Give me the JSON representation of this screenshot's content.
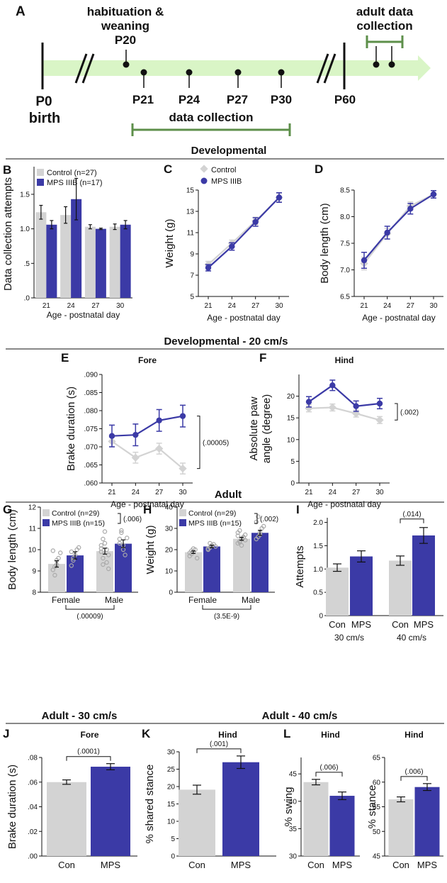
{
  "colors": {
    "control": "#d3d3d3",
    "mps": "#3b3aa6",
    "timeline": "#d9f5c6",
    "green": "#5d8f4a",
    "scatter": "#aaaaaa"
  },
  "timeline": {
    "letter": "A",
    "hab_line1": "habituation &",
    "hab_line2": "weaning",
    "hab_day": "P20",
    "adult_line1": "adult data",
    "adult_line2": "collection",
    "p0": "P0",
    "birth": "birth",
    "days": [
      "P21",
      "P24",
      "P27",
      "P30"
    ],
    "p60": "P60",
    "data_collection": "data collection"
  },
  "sections": {
    "developmental": "Developmental",
    "dev20": "Developmental - 20 cm/s",
    "adult": "Adult",
    "adult30": "Adult - 30 cm/s",
    "adult40": "Adult - 40 cm/s"
  },
  "chart_data": [
    {
      "id": "B",
      "type": "bar",
      "letter": "B",
      "categories": [
        "21",
        "24",
        "27",
        "30"
      ],
      "series": [
        {
          "name": "Control (n=27)",
          "values": [
            1.24,
            1.2,
            1.03,
            1.03
          ],
          "err": [
            0.1,
            0.12,
            0.03,
            0.04
          ]
        },
        {
          "name": "MPS IIIB (n=17)",
          "values": [
            1.06,
            1.43,
            1.0,
            1.06
          ],
          "err": [
            0.06,
            0.3,
            0.01,
            0.06
          ]
        }
      ],
      "yticks": [
        {
          "v": 0,
          "label": ".0"
        },
        {
          "v": 0.5,
          "label": ".5"
        },
        {
          "v": 1.0,
          "label": "1.0"
        },
        {
          "v": 1.5,
          "label": "1.5"
        }
      ],
      "ylim": [
        0,
        1.9
      ],
      "ylabel": "Data collection attempts",
      "xlabel": "Age - postnatal day"
    },
    {
      "id": "C",
      "type": "line",
      "letter": "C",
      "x": [
        "21",
        "24",
        "27",
        "30"
      ],
      "series": [
        {
          "name": "Control",
          "values": [
            8.0,
            10.0,
            12.1,
            14.3
          ],
          "err": [
            0.3,
            0.3,
            0.35,
            0.4
          ]
        },
        {
          "name": "MPS IIIB",
          "values": [
            7.7,
            9.7,
            12.0,
            14.3
          ],
          "err": [
            0.3,
            0.35,
            0.4,
            0.45
          ]
        }
      ],
      "yticks": [
        {
          "v": 5,
          "label": "5"
        },
        {
          "v": 7,
          "label": "7"
        },
        {
          "v": 9,
          "label": "9"
        },
        {
          "v": 11,
          "label": "11"
        },
        {
          "v": 13,
          "label": "13"
        },
        {
          "v": 15,
          "label": "15"
        }
      ],
      "ylim": [
        5,
        15
      ],
      "ylabel": "Weight (g)",
      "xlabel": "Age - postnatal day"
    },
    {
      "id": "D",
      "type": "line",
      "letter": "D",
      "x": [
        "21",
        "24",
        "27",
        "30"
      ],
      "series": [
        {
          "name": "Control",
          "values": [
            7.12,
            7.68,
            8.2,
            8.42
          ],
          "err": [
            0.12,
            0.1,
            0.08,
            0.07
          ]
        },
        {
          "name": "MPS IIIB",
          "values": [
            7.18,
            7.7,
            8.15,
            8.42
          ],
          "err": [
            0.15,
            0.12,
            0.1,
            0.07
          ]
        }
      ],
      "yticks": [
        {
          "v": 6.5,
          "label": "6.5"
        },
        {
          "v": 7.0,
          "label": "7.0"
        },
        {
          "v": 7.5,
          "label": "7.5"
        },
        {
          "v": 8.0,
          "label": "8.0"
        },
        {
          "v": 8.5,
          "label": "8.5"
        }
      ],
      "ylim": [
        6.5,
        8.5
      ],
      "ylabel": "Body length (cm)",
      "xlabel": "Age - postnatal day"
    },
    {
      "id": "E",
      "type": "line",
      "letter": "E",
      "title": "Fore",
      "x": [
        "21",
        "24",
        "27",
        "30"
      ],
      "series": [
        {
          "name": "Control",
          "values": [
            0.0715,
            0.067,
            0.0695,
            0.064
          ],
          "err": [
            0.0015,
            0.0015,
            0.0015,
            0.0015
          ]
        },
        {
          "name": "MPS IIIB",
          "values": [
            0.073,
            0.0733,
            0.0773,
            0.0785
          ],
          "err": [
            0.003,
            0.003,
            0.003,
            0.003
          ]
        }
      ],
      "yticks": [
        {
          "v": 0.06,
          "label": ".060"
        },
        {
          "v": 0.065,
          "label": ".065"
        },
        {
          "v": 0.07,
          "label": ".070"
        },
        {
          "v": 0.075,
          "label": ".075"
        },
        {
          "v": 0.08,
          "label": ".080"
        },
        {
          "v": 0.085,
          "label": ".085"
        },
        {
          "v": 0.09,
          "label": ".090"
        }
      ],
      "ylim": [
        0.06,
        0.09
      ],
      "ylabel": "Brake duration (s)",
      "xlabel": "Age - postnatal day",
      "pvalue": "(.00005)"
    },
    {
      "id": "F",
      "type": "line",
      "letter": "F",
      "title": "Hind",
      "x": [
        "21",
        "24",
        "27",
        "30"
      ],
      "series": [
        {
          "name": "Control",
          "values": [
            17.2,
            17.4,
            16.0,
            14.5
          ],
          "err": [
            0.8,
            0.8,
            0.8,
            0.8
          ]
        },
        {
          "name": "MPS IIIB",
          "values": [
            18.7,
            22.5,
            17.7,
            18.3
          ],
          "err": [
            1.2,
            1.2,
            1.2,
            1.2
          ]
        }
      ],
      "yticks": [
        {
          "v": 0,
          "label": "0"
        },
        {
          "v": 5,
          "label": "5"
        },
        {
          "v": 10,
          "label": "10"
        },
        {
          "v": 15,
          "label": "15"
        },
        {
          "v": 20,
          "label": "20"
        }
      ],
      "ylim": [
        0,
        25
      ],
      "ylabel": "Absolute paw",
      "ylabel2": "angle (degree)",
      "xlabel": "Age - postnatal day",
      "pvalue": "(.002)"
    },
    {
      "id": "G",
      "type": "bar",
      "letter": "G",
      "categories": [
        "Female",
        "Male"
      ],
      "series": [
        {
          "name": "Control (n=29)",
          "values": [
            9.33,
            9.93
          ],
          "err": [
            0.15,
            0.14
          ],
          "points": [
            [
              9.05,
              8.8,
              9.3,
              9.6,
              9.85,
              9.95,
              9.2,
              9.5
            ],
            [
              9.9,
              10.5,
              10.3,
              9.4,
              9.1,
              10.05,
              9.6,
              10.85,
              10.0,
              9.75,
              10.2,
              9.3
            ]
          ]
        },
        {
          "name": "MPS IIIB (n=15)",
          "values": [
            9.73,
            10.28
          ],
          "err": [
            0.17,
            0.18
          ],
          "points": [
            [
              9.25,
              9.5,
              9.75,
              10.0,
              10.1,
              9.9,
              9.6
            ],
            [
              10.5,
              10.8,
              10.0,
              9.75,
              10.55,
              10.3,
              10.9,
              10.2
            ]
          ]
        }
      ],
      "yticks": [
        {
          "v": 8,
          "label": "8"
        },
        {
          "v": 9,
          "label": "9"
        },
        {
          "v": 10,
          "label": "10"
        },
        {
          "v": 11,
          "label": "11"
        },
        {
          "v": 12,
          "label": "12"
        }
      ],
      "ylim": [
        8,
        12
      ],
      "ylabel": "Body length (cm)",
      "pvalue_top": "(.006)",
      "pvalue_bottom": "(.00009)"
    },
    {
      "id": "H",
      "type": "bar",
      "letter": "H",
      "categories": [
        "Female",
        "Male"
      ],
      "series": [
        {
          "name": "Control (n=29)",
          "values": [
            18.8,
            25.1
          ],
          "err": [
            0.6,
            0.7
          ],
          "points": [
            [
              17,
              18,
              19,
              20,
              16,
              18.5,
              19.5,
              20.5
            ],
            [
              23,
              24,
              25,
              26,
              27,
              28,
              29,
              22,
              25.5,
              24.5,
              26.5,
              23.5
            ]
          ]
        },
        {
          "name": "MPS IIIB (n=15)",
          "values": [
            21.5,
            27.9
          ],
          "err": [
            0.6,
            1.2
          ],
          "points": [
            [
              20,
              21,
              22,
              22.5,
              21.5,
              20.5,
              23
            ],
            [
              25,
              26,
              28,
              30,
              31,
              33,
              35.5,
              27
            ]
          ]
        }
      ],
      "yticks": [
        {
          "v": 0,
          "label": "0"
        },
        {
          "v": 10,
          "label": "10"
        },
        {
          "v": 20,
          "label": "20"
        },
        {
          "v": 30,
          "label": "30"
        },
        {
          "v": 40,
          "label": "40"
        }
      ],
      "ylim": [
        0,
        40
      ],
      "ylabel": "Weight (g)",
      "pvalue_top": "(.002)",
      "pvalue_bottom": "(3.5E-9)"
    },
    {
      "id": "I",
      "type": "bar",
      "letter": "I",
      "categories": [
        "Con",
        "MPS",
        "Con",
        "MPS"
      ],
      "groups": [
        "30 cm/s",
        "40 cm/s"
      ],
      "values": [
        1.03,
        1.27,
        1.18,
        1.72
      ],
      "err": [
        0.08,
        0.12,
        0.1,
        0.17
      ],
      "yticks": [
        {
          "v": 0,
          "label": "0"
        },
        {
          "v": 0.5,
          "label": "0.5"
        },
        {
          "v": 1.0,
          "label": "1.0"
        },
        {
          "v": 1.5,
          "label": "1.5"
        },
        {
          "v": 2.0,
          "label": "2.0"
        }
      ],
      "ylim": [
        0,
        2.1
      ],
      "ylabel": "Attempts",
      "pvalue": "(.014)"
    },
    {
      "id": "J",
      "type": "bar",
      "letter": "J",
      "title": "Fore",
      "categories": [
        "Con",
        "MPS"
      ],
      "values": [
        0.06,
        0.0725
      ],
      "err": [
        0.0018,
        0.0025
      ],
      "yticks": [
        {
          "v": 0,
          "label": ".00"
        },
        {
          "v": 0.02,
          "label": ".02"
        },
        {
          "v": 0.04,
          "label": ".04"
        },
        {
          "v": 0.06,
          "label": ".06"
        },
        {
          "v": 0.08,
          "label": ".08"
        }
      ],
      "ylim": [
        0,
        0.08
      ],
      "ylabel": "Brake duration (s)",
      "pvalue": "(.0001)"
    },
    {
      "id": "K",
      "type": "bar",
      "letter": "K",
      "title": "Hind",
      "categories": [
        "Con",
        "MPS"
      ],
      "values": [
        19.1,
        27.0
      ],
      "err": [
        1.3,
        1.8
      ],
      "yticks": [
        {
          "v": 0,
          "label": "0"
        },
        {
          "v": 5,
          "label": "5"
        },
        {
          "v": 10,
          "label": "10"
        },
        {
          "v": 15,
          "label": "15"
        },
        {
          "v": 20,
          "label": "20"
        },
        {
          "v": 25,
          "label": "25"
        },
        {
          "v": 30,
          "label": "30"
        }
      ],
      "ylim": [
        0,
        30
      ],
      "ylabel": "% shared stance",
      "pvalue": "(.001)"
    },
    {
      "id": "L1",
      "type": "bar",
      "letter": "L",
      "title": "Hind",
      "categories": [
        "Con",
        "MPS"
      ],
      "values": [
        43.5,
        41.0
      ],
      "err": [
        0.5,
        0.7
      ],
      "yticks": [
        {
          "v": 30,
          "label": "30"
        },
        {
          "v": 35,
          "label": "35"
        },
        {
          "v": 40,
          "label": "40"
        },
        {
          "v": 45,
          "label": "45"
        }
      ],
      "ylim": [
        30,
        48
      ],
      "ylabel": "% swing",
      "pvalue": "(.006)"
    },
    {
      "id": "L2",
      "type": "bar",
      "title": "Hind",
      "categories": [
        "Con",
        "MPS"
      ],
      "values": [
        56.5,
        59.0
      ],
      "err": [
        0.5,
        0.7
      ],
      "yticks": [
        {
          "v": 45,
          "label": "45"
        },
        {
          "v": 50,
          "label": "50"
        },
        {
          "v": 55,
          "label": "55"
        },
        {
          "v": 60,
          "label": "60"
        },
        {
          "v": 65,
          "label": "65"
        }
      ],
      "ylim": [
        45,
        65
      ],
      "ylabel": "% stance",
      "pvalue": "(.006)"
    }
  ]
}
